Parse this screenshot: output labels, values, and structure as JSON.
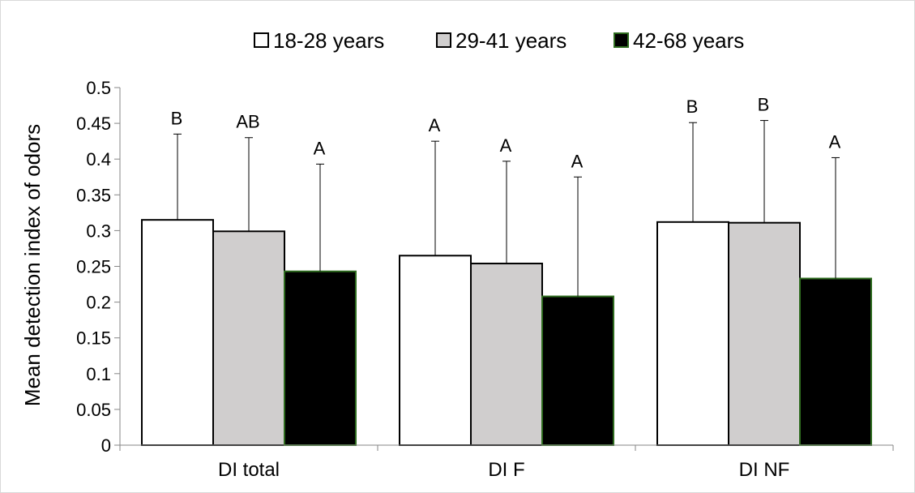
{
  "chart_data": {
    "type": "bar",
    "categories": [
      "DI total",
      "DI F",
      "DI NF"
    ],
    "ylabel": "Mean detection index of odors",
    "ylim": [
      0,
      0.5
    ],
    "yticks": [
      "0",
      "0.05",
      "0.1",
      "0.15",
      "0.2",
      "0.25",
      "0.3",
      "0.35",
      "0.4",
      "0.45",
      "0.5"
    ],
    "legend_position": "top",
    "grid": false,
    "series": [
      {
        "name": "18-28 years",
        "fill": "#ffffff",
        "stroke": "#000000",
        "values": [
          0.315,
          0.265,
          0.312
        ],
        "error_upper": [
          0.435,
          0.425,
          0.451
        ],
        "labels": [
          "B",
          "A",
          "B"
        ]
      },
      {
        "name": "29-41 years",
        "fill": "#d0cece",
        "stroke": "#000000",
        "values": [
          0.299,
          0.254,
          0.311
        ],
        "error_upper": [
          0.43,
          0.397,
          0.454
        ],
        "labels": [
          "AB",
          "A",
          "B"
        ]
      },
      {
        "name": "42-68 years",
        "fill": "#000000",
        "stroke": "#2e6b1f",
        "values": [
          0.243,
          0.208,
          0.233
        ],
        "error_upper": [
          0.393,
          0.375,
          0.402
        ],
        "labels": [
          "A",
          "A",
          "A"
        ]
      }
    ]
  }
}
